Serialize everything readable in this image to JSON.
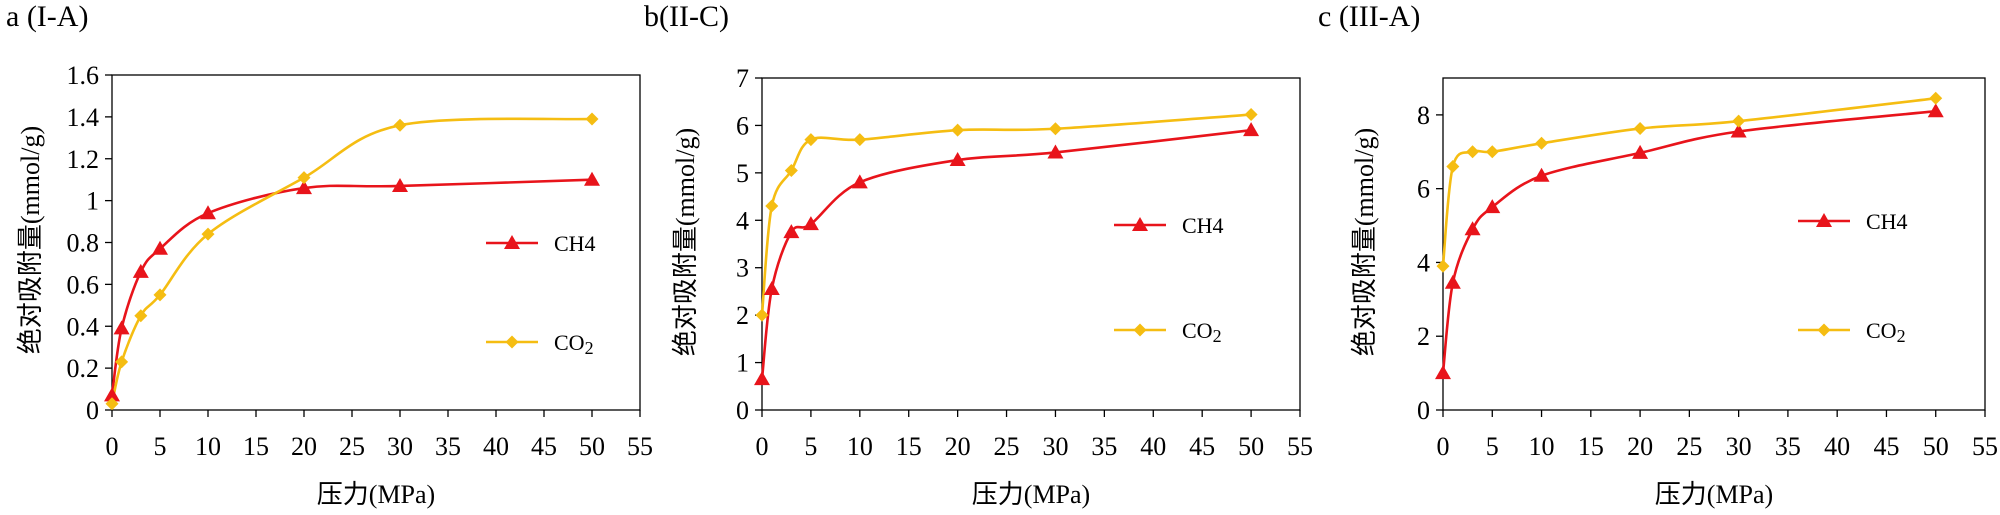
{
  "colors": {
    "CH4": "#E8141B",
    "CO2": "#F5BD12"
  },
  "chart_data": [
    {
      "type": "line",
      "title": "a (I-A)",
      "xlabel": "压力(MPa)",
      "ylabel": "绝对吸附量(mmol/g)",
      "xlim": [
        0,
        55
      ],
      "ylim": [
        0,
        1.6
      ],
      "xticks": [
        0,
        5,
        10,
        15,
        20,
        25,
        30,
        35,
        40,
        45,
        50,
        55
      ],
      "yticks": [
        0,
        0.2,
        0.4,
        0.6,
        0.8,
        1,
        1.2,
        1.4,
        1.6
      ],
      "ytick_labels": [
        "0",
        "0.2",
        "0.4",
        "0.6",
        "0.8",
        "1",
        "1.2",
        "1.4",
        "1.6"
      ],
      "series": [
        {
          "name": "CH4",
          "legend": "CH4",
          "marker": "triangle",
          "x": [
            0,
            1,
            3,
            5,
            10,
            20,
            30,
            50
          ],
          "y": [
            0.07,
            0.39,
            0.66,
            0.77,
            0.94,
            1.06,
            1.07,
            1.1
          ]
        },
        {
          "name": "CO2",
          "legend": "CO2",
          "marker": "diamond",
          "x": [
            0,
            1,
            3,
            5,
            10,
            20,
            30,
            50
          ],
          "y": [
            0.03,
            0.23,
            0.45,
            0.55,
            0.84,
            1.11,
            1.36,
            1.39
          ]
        }
      ]
    },
    {
      "type": "line",
      "title": "b(II-C)",
      "xlabel": "压力(MPa)",
      "ylabel": "绝对吸附量(mmol/g)",
      "xlim": [
        0,
        55
      ],
      "ylim": [
        0,
        7
      ],
      "xticks": [
        0,
        5,
        10,
        15,
        20,
        25,
        30,
        35,
        40,
        45,
        50,
        55
      ],
      "yticks": [
        0,
        1,
        2,
        3,
        4,
        5,
        6,
        7
      ],
      "ytick_labels": [
        "0",
        "1",
        "2",
        "3",
        "4",
        "5",
        "6",
        "7"
      ],
      "series": [
        {
          "name": "CH4",
          "legend": "CH4",
          "marker": "triangle",
          "x": [
            0,
            1,
            3,
            5,
            10,
            20,
            30,
            50
          ],
          "y": [
            0.65,
            2.55,
            3.75,
            3.92,
            4.8,
            5.27,
            5.43,
            5.9
          ]
        },
        {
          "name": "CO2",
          "legend": "CO2",
          "marker": "diamond",
          "x": [
            0,
            1,
            3,
            5,
            10,
            20,
            30,
            50
          ],
          "y": [
            2.0,
            4.3,
            5.05,
            5.7,
            5.7,
            5.9,
            5.93,
            6.23
          ]
        }
      ]
    },
    {
      "type": "line",
      "title": "c (III-A)",
      "xlabel": "压力(MPa)",
      "ylabel": "绝对吸附量(mmol/g)",
      "xlim": [
        0,
        55
      ],
      "ylim": [
        0,
        9
      ],
      "xticks": [
        0,
        5,
        10,
        15,
        20,
        25,
        30,
        35,
        40,
        45,
        50,
        55
      ],
      "yticks": [
        0,
        2,
        4,
        6,
        8
      ],
      "ytick_labels": [
        "0",
        "2",
        "4",
        "6",
        "8"
      ],
      "series": [
        {
          "name": "CH4",
          "legend": "CH4",
          "marker": "triangle",
          "x": [
            0,
            1,
            3,
            5,
            10,
            20,
            30,
            50
          ],
          "y": [
            1.0,
            3.45,
            4.9,
            5.5,
            6.35,
            6.97,
            7.55,
            8.1
          ]
        },
        {
          "name": "CO2",
          "legend": "CO2",
          "marker": "diamond",
          "x": [
            0,
            1,
            3,
            5,
            10,
            20,
            30,
            50
          ],
          "y": [
            3.9,
            6.6,
            7.0,
            7.0,
            7.23,
            7.63,
            7.83,
            8.45
          ]
        }
      ]
    }
  ]
}
